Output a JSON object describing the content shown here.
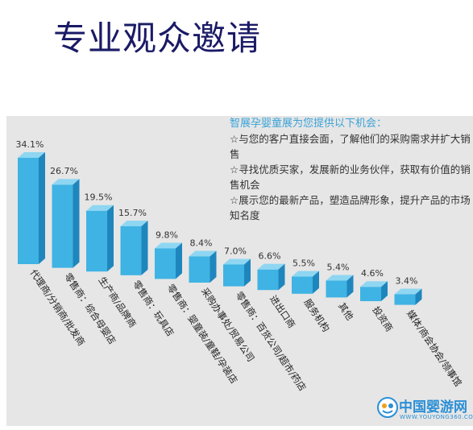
{
  "page_title": "专业观众邀请",
  "invite": {
    "heading": "智展孕婴童展为您提供以下机会：",
    "items": [
      "☆与您的客户直接会面，了解他们的采购需求并扩大销售",
      "☆寻找优质买家，发展新的业务伙伴，获取有价值的销售机会",
      "☆展示您的最新产品，塑造品牌形象，提升产品的市场知名度"
    ]
  },
  "chart_data": {
    "type": "bar",
    "categories": [
      "代理商/分销商/批发商",
      "零售商：综合母婴店",
      "生产商/品牌商",
      "零售商：玩具店",
      "零售商：婴童装/童鞋/孕装店",
      "采购办事处/贸易公司",
      "零售商：百货公司/超市/药店",
      "进出口商",
      "服务机构",
      "其他",
      "投资商",
      "媒体/商会协会/领事馆"
    ],
    "values": [
      34.1,
      26.7,
      19.5,
      15.7,
      9.8,
      8.4,
      7.0,
      6.6,
      5.5,
      5.4,
      4.6,
      3.4
    ],
    "value_labels": [
      "34.1%",
      "26.7%",
      "19.5%",
      "15.7%",
      "9.8%",
      "8.4%",
      "7.0%",
      "6.6%",
      "5.5%",
      "5.4%",
      "4.6%",
      "3.4%"
    ],
    "unit": "%",
    "bar_color": "#3fb3e3",
    "ylim": [
      0,
      35
    ]
  },
  "brand": {
    "name": "中国婴游网",
    "url": "WWW.YOUYONG360.COM"
  }
}
